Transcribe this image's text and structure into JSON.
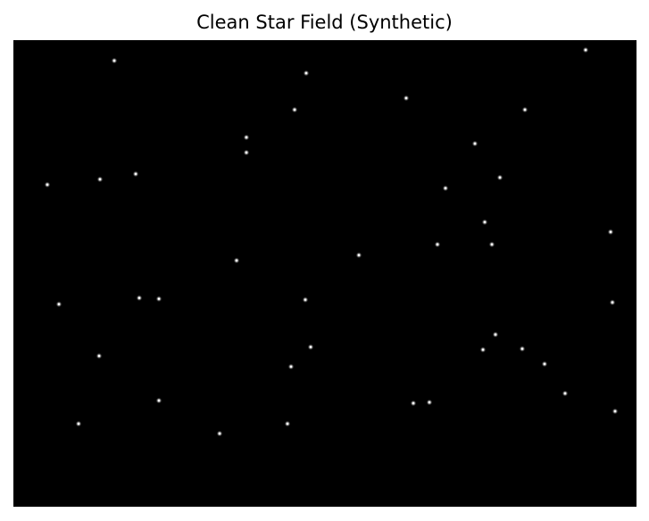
{
  "figure": {
    "title": "Clean Star Field (Synthetic)"
  },
  "colors": {
    "background": "#000000",
    "star_core": "#ffffff",
    "star_glow": "#cfcfcf"
  }
}
